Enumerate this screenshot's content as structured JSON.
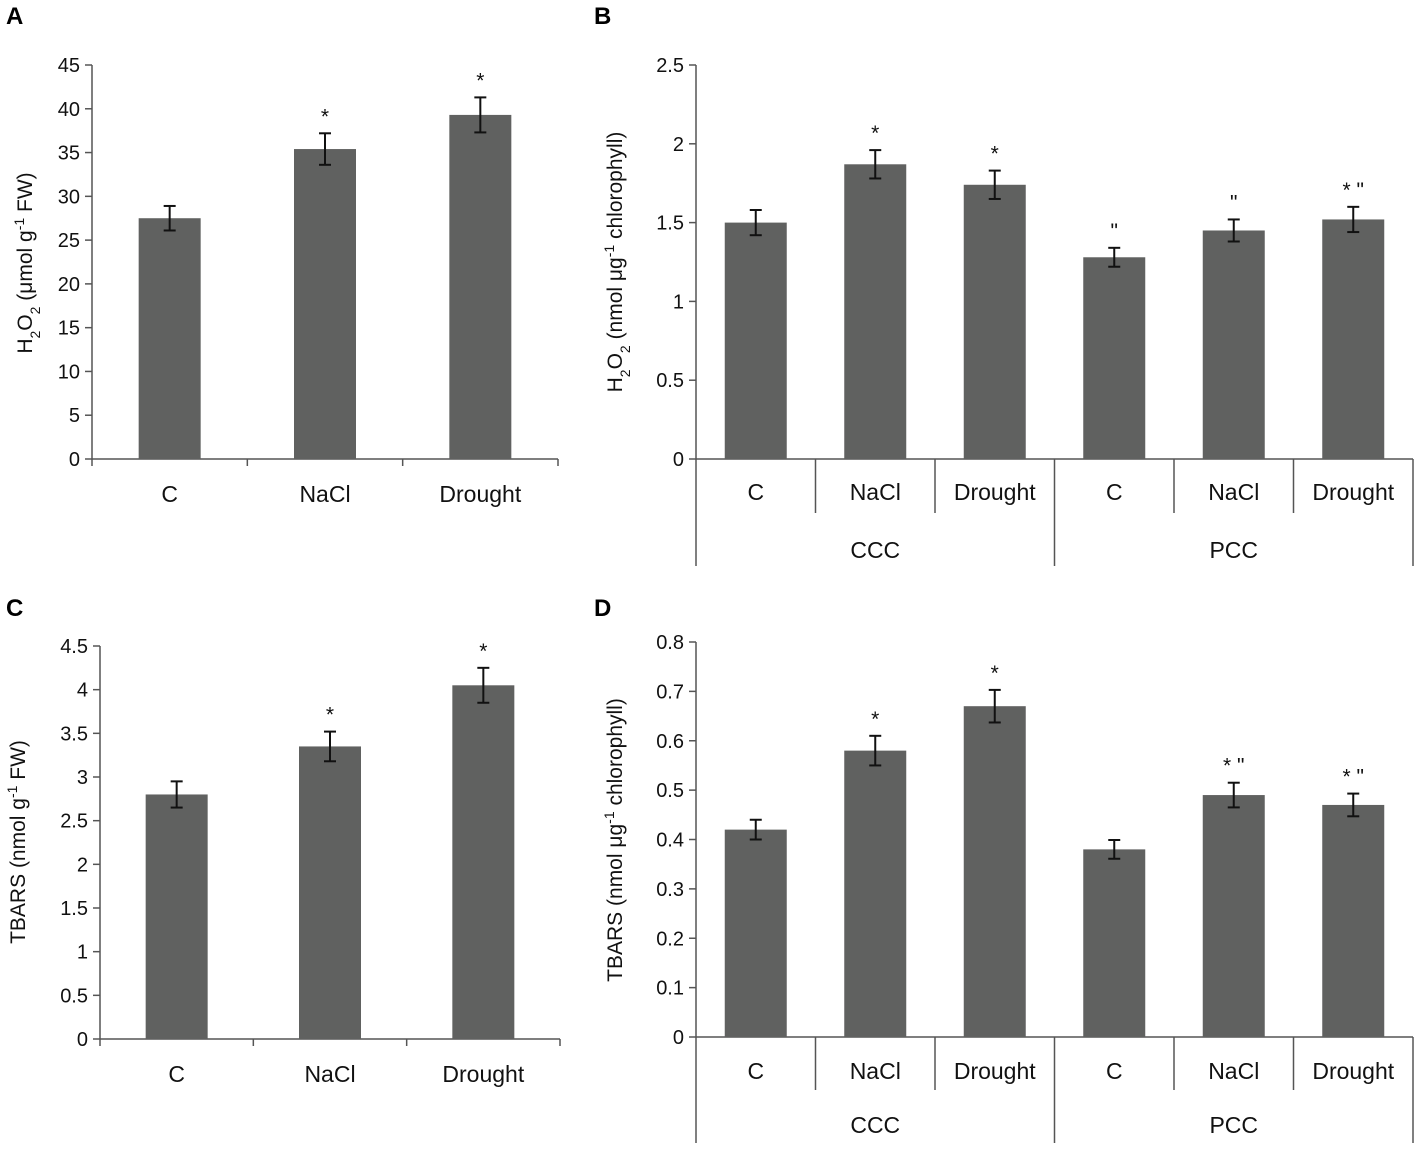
{
  "figure": {
    "panel_labels": [
      "A",
      "B",
      "C",
      "D"
    ],
    "bar_color": "#606160",
    "axis_color": "#555555"
  },
  "chart_data": [
    {
      "panel": "A",
      "type": "bar",
      "categories": [
        "C",
        "NaCl",
        "Drought"
      ],
      "values": [
        27.5,
        35.4,
        39.3
      ],
      "errors": [
        1.4,
        1.8,
        2.0
      ],
      "annotations": [
        "",
        "*",
        "*"
      ],
      "ylabel_main": "H",
      "ylabel_sub1": "2",
      "ylabel_mid": "O",
      "ylabel_sub2": "2",
      "ylabel_rest": " (μmol g",
      "ylabel_sup": "-1",
      "ylabel_end": " FW)",
      "ylim": [
        0,
        45
      ],
      "yticks": [
        0,
        5,
        10,
        15,
        20,
        25,
        30,
        35,
        40,
        45
      ],
      "ytick_labels": [
        "0",
        "5",
        "10",
        "15",
        "20",
        "25",
        "30",
        "35",
        "40",
        "45"
      ]
    },
    {
      "panel": "B",
      "type": "bar",
      "categories": [
        "C",
        "NaCl",
        "Drought",
        "C",
        "NaCl",
        "Drought"
      ],
      "category_display": [
        "C",
        "NaCl",
        "Drought",
        "C",
        "NaCl",
        "Drought"
      ],
      "groups": [
        "CCC",
        "PCC"
      ],
      "values": [
        1.5,
        1.87,
        1.74,
        1.28,
        1.45,
        1.52
      ],
      "errors": [
        0.08,
        0.09,
        0.09,
        0.06,
        0.07,
        0.08
      ],
      "annotations": [
        "",
        "*",
        "*",
        "\"",
        "\"",
        "* \""
      ],
      "ylabel_main": "H",
      "ylabel_sub1": "2",
      "ylabel_mid": "O",
      "ylabel_sub2": "2",
      "ylabel_rest": " (nmol μg",
      "ylabel_sup": "-1",
      "ylabel_end": " chlorophyll)",
      "ylim": [
        0,
        2.5
      ],
      "yticks": [
        0,
        0.5,
        1,
        1.5,
        2,
        2.5
      ],
      "ytick_labels": [
        "0",
        "0.5",
        "1",
        "1.5",
        "2",
        "2.5"
      ]
    },
    {
      "panel": "C",
      "type": "bar",
      "categories": [
        "C",
        "NaCl",
        "Drought"
      ],
      "values": [
        2.8,
        3.35,
        4.05
      ],
      "errors": [
        0.15,
        0.17,
        0.2
      ],
      "annotations": [
        "",
        "*",
        "*"
      ],
      "ylabel_main": "TBARS (nmol g",
      "ylabel_sup": "-1",
      "ylabel_end": " FW)",
      "ylim": [
        0,
        4.5
      ],
      "yticks": [
        0,
        0.5,
        1,
        1.5,
        2,
        2.5,
        3,
        3.5,
        4,
        4.5
      ],
      "ytick_labels": [
        "0",
        "0.5",
        "1",
        "1.5",
        "2",
        "2.5",
        "3",
        "3.5",
        "4",
        "4.5"
      ]
    },
    {
      "panel": "D",
      "type": "bar",
      "categories": [
        "C",
        "NaCl",
        "Drought",
        "C",
        "NaCl",
        "Drought"
      ],
      "category_display": [
        "C",
        "NaCl",
        "Drought",
        "C",
        "NaCl",
        "Drought"
      ],
      "groups": [
        "CCC",
        "PCC"
      ],
      "values": [
        0.42,
        0.58,
        0.67,
        0.38,
        0.49,
        0.47
      ],
      "errors": [
        0.02,
        0.03,
        0.033,
        0.019,
        0.025,
        0.023
      ],
      "annotations": [
        "",
        "*",
        "*",
        "",
        "* \"",
        "* \""
      ],
      "ylabel_main": "TBARS (nmol μg",
      "ylabel_sup": "-1",
      "ylabel_end": " chlorophyll)",
      "ylim": [
        0,
        0.8
      ],
      "yticks": [
        0,
        0.1,
        0.2,
        0.3,
        0.4,
        0.5,
        0.6,
        0.7,
        0.8
      ],
      "ytick_labels": [
        "0",
        "0.1",
        "0.2",
        "0.3",
        "0.4",
        "0.5",
        "0.6",
        "0.7",
        "0.8"
      ]
    }
  ]
}
